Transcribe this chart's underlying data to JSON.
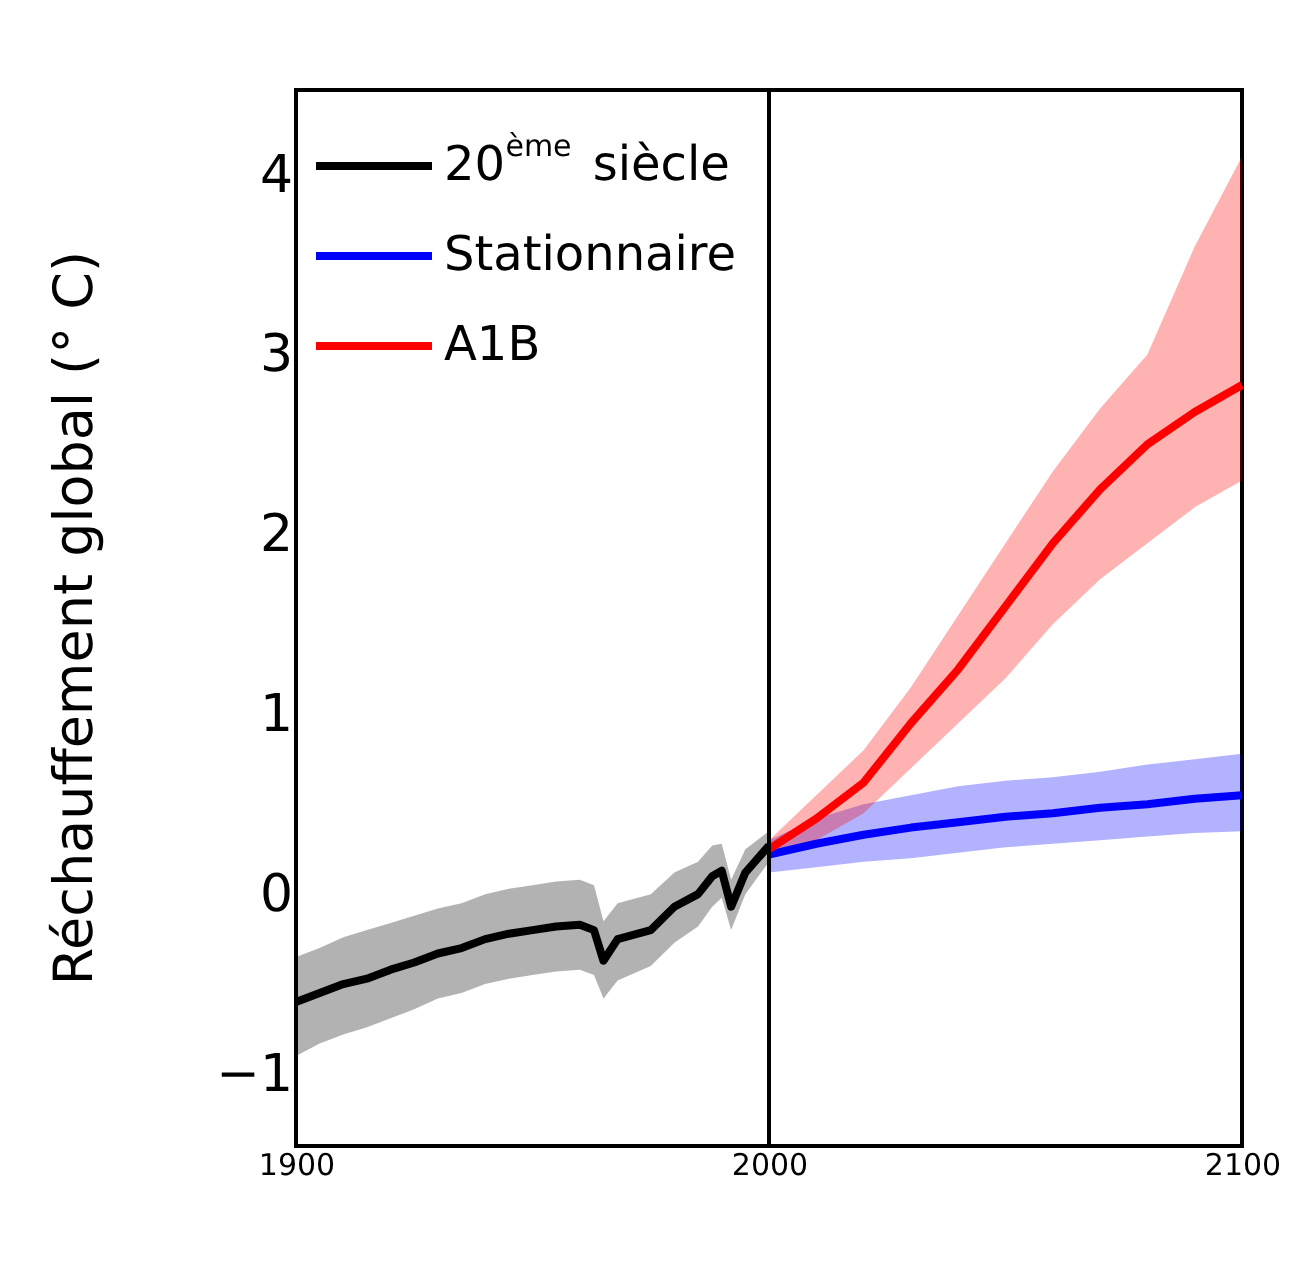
{
  "chart_data": {
    "type": "line",
    "ylabel": "Réchauffement global (° C)",
    "xlim": [
      1900,
      2100
    ],
    "xticks": [
      1900,
      2000,
      2100
    ],
    "ylim": [
      -1.4,
      4.47
    ],
    "yticks": [
      -1,
      0,
      1,
      2,
      3,
      4
    ],
    "grid": false,
    "legend": "top left",
    "line_style": "solid",
    "marker": "none",
    "ref_lines": [
      {
        "axis": "x",
        "value": 2000,
        "color": "#000000"
      }
    ],
    "series": [
      {
        "name": "20$^{ème}$ siècle",
        "color": "#000000",
        "x": [
          1900,
          1905,
          1910,
          1915,
          1920,
          1925,
          1930,
          1935,
          1940,
          1945,
          1950,
          1955,
          1960,
          1963,
          1965,
          1968,
          1975,
          1980,
          1985,
          1988,
          1990,
          1992,
          1995,
          2000
        ],
        "values": [
          -0.6,
          -0.55,
          -0.5,
          -0.47,
          -0.42,
          -0.38,
          -0.33,
          -0.3,
          -0.25,
          -0.22,
          -0.2,
          -0.18,
          -0.17,
          -0.2,
          -0.37,
          -0.25,
          -0.2,
          -0.07,
          0.0,
          0.1,
          0.13,
          -0.07,
          0.12,
          0.27
        ],
        "lower": [
          -0.9,
          -0.83,
          -0.78,
          -0.74,
          -0.69,
          -0.64,
          -0.58,
          -0.55,
          -0.5,
          -0.47,
          -0.45,
          -0.43,
          -0.42,
          -0.45,
          -0.58,
          -0.48,
          -0.4,
          -0.27,
          -0.18,
          -0.07,
          -0.02,
          -0.2,
          0.0,
          0.18
        ],
        "upper": [
          -0.35,
          -0.3,
          -0.24,
          -0.2,
          -0.16,
          -0.12,
          -0.08,
          -0.05,
          0.0,
          0.03,
          0.05,
          0.07,
          0.08,
          0.05,
          -0.15,
          -0.05,
          0.0,
          0.12,
          0.18,
          0.27,
          0.28,
          0.08,
          0.25,
          0.35
        ]
      },
      {
        "name": "Stationnaire",
        "color": "#0000ff",
        "x": [
          2000,
          2010,
          2020,
          2030,
          2040,
          2050,
          2060,
          2070,
          2080,
          2090,
          2100
        ],
        "values": [
          0.22,
          0.28,
          0.33,
          0.37,
          0.4,
          0.43,
          0.45,
          0.48,
          0.5,
          0.53,
          0.55
        ],
        "lower": [
          0.12,
          0.15,
          0.18,
          0.2,
          0.23,
          0.26,
          0.28,
          0.3,
          0.32,
          0.34,
          0.35
        ],
        "upper": [
          0.3,
          0.42,
          0.5,
          0.55,
          0.6,
          0.63,
          0.65,
          0.68,
          0.72,
          0.75,
          0.78
        ]
      },
      {
        "name": "A1B",
        "color": "#ff0000",
        "x": [
          2000,
          2010,
          2020,
          2030,
          2040,
          2050,
          2060,
          2070,
          2080,
          2090,
          2100
        ],
        "values": [
          0.25,
          0.42,
          0.62,
          0.95,
          1.25,
          1.6,
          1.95,
          2.25,
          2.5,
          2.68,
          2.83
        ],
        "lower": [
          0.2,
          0.3,
          0.45,
          0.7,
          0.95,
          1.2,
          1.5,
          1.75,
          1.95,
          2.15,
          2.3
        ],
        "upper": [
          0.3,
          0.55,
          0.8,
          1.15,
          1.55,
          1.95,
          2.35,
          2.7,
          3.0,
          3.6,
          4.1
        ]
      }
    ]
  }
}
